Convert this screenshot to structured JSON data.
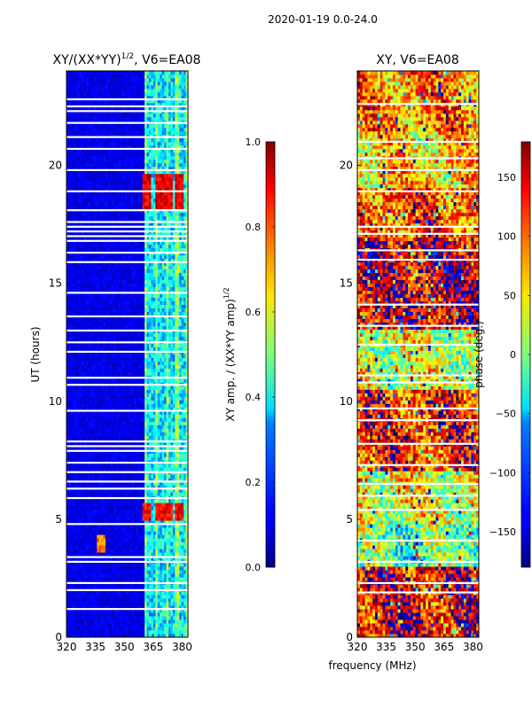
{
  "figure": {
    "suptitle": "2020-01-19 0.0-24.0",
    "xlabel_shared": "frequency (MHz)"
  },
  "chart_data": [
    {
      "type": "heatmap",
      "title": "XY/(XX*YY)^1/2, V6=EA08",
      "title_main": "XY/(XX*YY)",
      "title_sup": "1/2",
      "title_rest": ", V6=EA08",
      "xlabel": "",
      "ylabel": "UT (hours)",
      "xlim": [
        320,
        383
      ],
      "ylim": [
        0,
        24
      ],
      "xticks": [
        320,
        335,
        350,
        365,
        380
      ],
      "xtick_labels": [
        "320",
        "335",
        "350",
        "365",
        "380"
      ],
      "yticks": [
        0,
        5,
        10,
        15,
        20
      ],
      "ytick_labels": [
        "0",
        "5",
        "10",
        "15",
        "20"
      ],
      "colormap": "jet",
      "background_value": 0.1,
      "rfi_band_mhz": [
        360,
        383
      ],
      "rfi_band_value": 0.35,
      "hot_spots": [
        {
          "t_start": 18.2,
          "t_end": 19.6,
          "value": 0.9,
          "channels_mhz": [
            362,
            368,
            373,
            379
          ]
        },
        {
          "t_start": 5.0,
          "t_end": 5.7,
          "value": 0.88,
          "channels_mhz": [
            362,
            368,
            373,
            379
          ]
        },
        {
          "t_start": 3.6,
          "t_end": 4.4,
          "value": 0.75,
          "channels_mhz": [
            338
          ]
        }
      ],
      "flagged_ut_hours": [
        1.2,
        2.0,
        2.3,
        3.2,
        3.4,
        4.8,
        5.9,
        6.3,
        6.6,
        7.0,
        7.4,
        7.9,
        8.1,
        8.3,
        9.6,
        10.7,
        11.0,
        12.1,
        12.5,
        13.0,
        13.6,
        14.6,
        15.9,
        16.3,
        16.8,
        17.0,
        17.2,
        17.4,
        17.6,
        18.1,
        18.9,
        19.8,
        20.7,
        21.2,
        21.8,
        22.3,
        22.5,
        22.8
      ],
      "colorbar": {
        "label": "XY amp. / (XX*YY amp)^1/2",
        "label_main": "XY amp. / (XX*YY amp)",
        "label_sup": "1/2",
        "range": [
          0.0,
          1.0
        ],
        "ticks": [
          0.0,
          0.2,
          0.4,
          0.6,
          0.8,
          1.0
        ],
        "tick_labels": [
          "0.0",
          "0.2",
          "0.4",
          "0.6",
          "0.8",
          "1.0"
        ]
      }
    },
    {
      "type": "heatmap",
      "title": "XY, V6=EA08",
      "xlabel": "frequency (MHz)",
      "ylabel": "",
      "xlim": [
        320,
        383
      ],
      "ylim": [
        0,
        24
      ],
      "xticks": [
        320,
        335,
        350,
        365,
        380
      ],
      "xtick_labels": [
        "320",
        "335",
        "350",
        "365",
        "380"
      ],
      "yticks": [
        0,
        5,
        10,
        15,
        20
      ],
      "ytick_labels": [
        "0",
        "5",
        "10",
        "15",
        "20"
      ],
      "colormap": "jet",
      "regions": [
        {
          "t_start": 0.0,
          "t_end": 3.0,
          "value": 140
        },
        {
          "t_start": 3.0,
          "t_end": 4.8,
          "value": -10
        },
        {
          "t_start": 4.8,
          "t_end": 7.0,
          "value": 40
        },
        {
          "t_start": 7.0,
          "t_end": 10.5,
          "value": 120
        },
        {
          "t_start": 10.5,
          "t_end": 13.0,
          "value": 30
        },
        {
          "t_start": 13.0,
          "t_end": 17.0,
          "value": 150
        },
        {
          "t_start": 17.0,
          "t_end": 19.0,
          "value": 110
        },
        {
          "t_start": 19.0,
          "t_end": 21.5,
          "value": 60
        },
        {
          "t_start": 21.5,
          "t_end": 24.0,
          "value": 90
        }
      ],
      "flagged_ut_hours": [
        1.9,
        2.3,
        3.2,
        4.1,
        5.4,
        6.0,
        6.5,
        7.3,
        8.2,
        9.2,
        9.7,
        10.8,
        11.1,
        12.4,
        13.2,
        14.1,
        16.0,
        16.4,
        17.1,
        17.4,
        18.9,
        19.8,
        20.3,
        21.0,
        22.6
      ],
      "colorbar": {
        "label": "phase (deg.)",
        "range": [
          -180,
          180
        ],
        "ticks": [
          -150,
          -100,
          -50,
          0,
          50,
          100,
          150
        ],
        "tick_labels": [
          "−150",
          "−100",
          "−50",
          "0",
          "50",
          "100",
          "150"
        ]
      }
    }
  ]
}
